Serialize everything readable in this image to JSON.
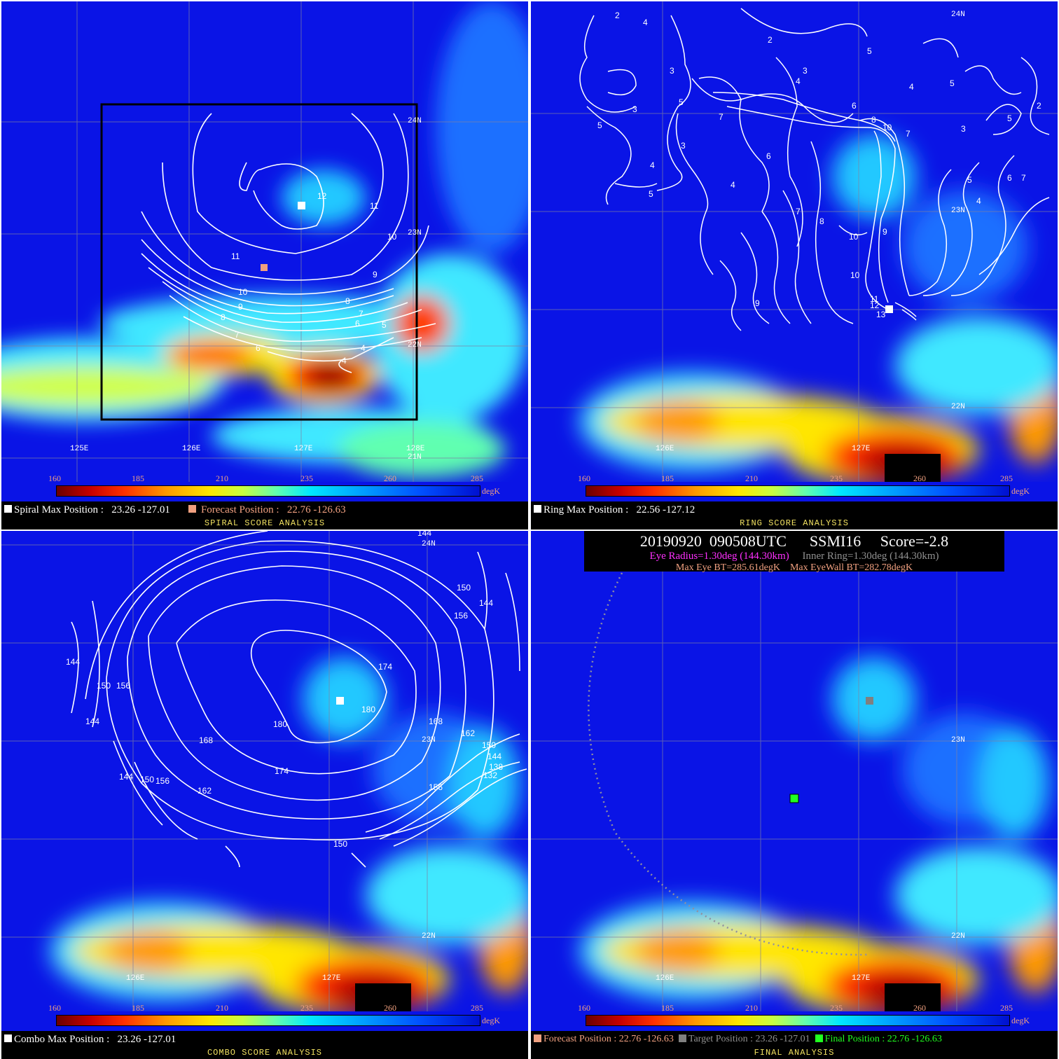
{
  "colorbar": {
    "ticks": [
      "160",
      "185",
      "210",
      "235",
      "260",
      "285"
    ],
    "unit": "degK"
  },
  "panels": {
    "spiral": {
      "max_label": "Spiral Max Position :",
      "max_value": "23.26 -127.01",
      "forecast_label": "Forecast Position :",
      "forecast_value": "22.76 -126.63",
      "title": "SPIRAL SCORE ANALYSIS",
      "lat_labels": [
        "24N",
        "23N",
        "22N",
        "21N"
      ],
      "lon_labels": [
        "125E",
        "126E",
        "127E",
        "128E"
      ],
      "contour_labels": [
        "12",
        "11",
        "10",
        "11",
        "10",
        "9",
        "8",
        "9",
        "8",
        "7",
        "6",
        "7",
        "6",
        "5",
        "4",
        "4"
      ]
    },
    "ring": {
      "max_label": "Ring Max Position :",
      "max_value": "22.56 -127.12",
      "title": "RING SCORE ANALYSIS",
      "lat_labels": [
        "24N",
        "23N",
        "22N"
      ],
      "lon_labels": [
        "126E",
        "127E"
      ],
      "contour_labels": [
        "2",
        "4",
        "2",
        "3",
        "3",
        "4",
        "5",
        "5",
        "5",
        "3",
        "6",
        "8",
        "10",
        "7",
        "4",
        "3",
        "5",
        "4",
        "4",
        "5",
        "7",
        "7",
        "8",
        "10",
        "9",
        "10",
        "11",
        "12",
        "13",
        "6",
        "9",
        "5",
        "4",
        "6",
        "7",
        "3",
        "5",
        "2"
      ]
    },
    "combo": {
      "max_label": "Combo Max Position :",
      "max_value": "23.26 -127.01",
      "title": "COMBO SCORE ANALYSIS",
      "lat_labels": [
        "24N",
        "23N",
        "22N"
      ],
      "lon_labels": [
        "126E",
        "127E"
      ],
      "contour_labels": [
        "144",
        "150",
        "156",
        "144",
        "174",
        "180",
        "180",
        "168",
        "168",
        "162",
        "150",
        "144",
        "138",
        "132",
        "174",
        "156",
        "162",
        "156",
        "150",
        "144",
        "150",
        "156",
        "144",
        "144"
      ]
    },
    "final": {
      "date": "20190920",
      "time": "090508UTC",
      "sensor": "SSMI16",
      "score": "Score=-2.8",
      "eye_radius": "Eye Radius=1.30deg (144.30km)",
      "inner_ring": "Inner Ring=1.30deg (144.30km)",
      "max_eye_bt": "Max Eye BT=285.61degK",
      "max_eyewall_bt": "Max EyeWall BT=282.78degK",
      "forecast_label": "Forecast Position : 22.76 -126.63",
      "target_label": "Target Position : 23.26 -127.01",
      "final_label": "Final Position : 22.76 -126.63",
      "title": "FINAL ANALYSIS",
      "lat_labels": [
        "23N",
        "22N"
      ],
      "lon_labels": [
        "126E",
        "127E"
      ]
    }
  },
  "colors": {
    "forecast": "#f0a080",
    "target": "#808080",
    "final": "#20ff20",
    "eye": "#ff30ff",
    "inner_ring": "#909090",
    "title": "#f0e060"
  }
}
